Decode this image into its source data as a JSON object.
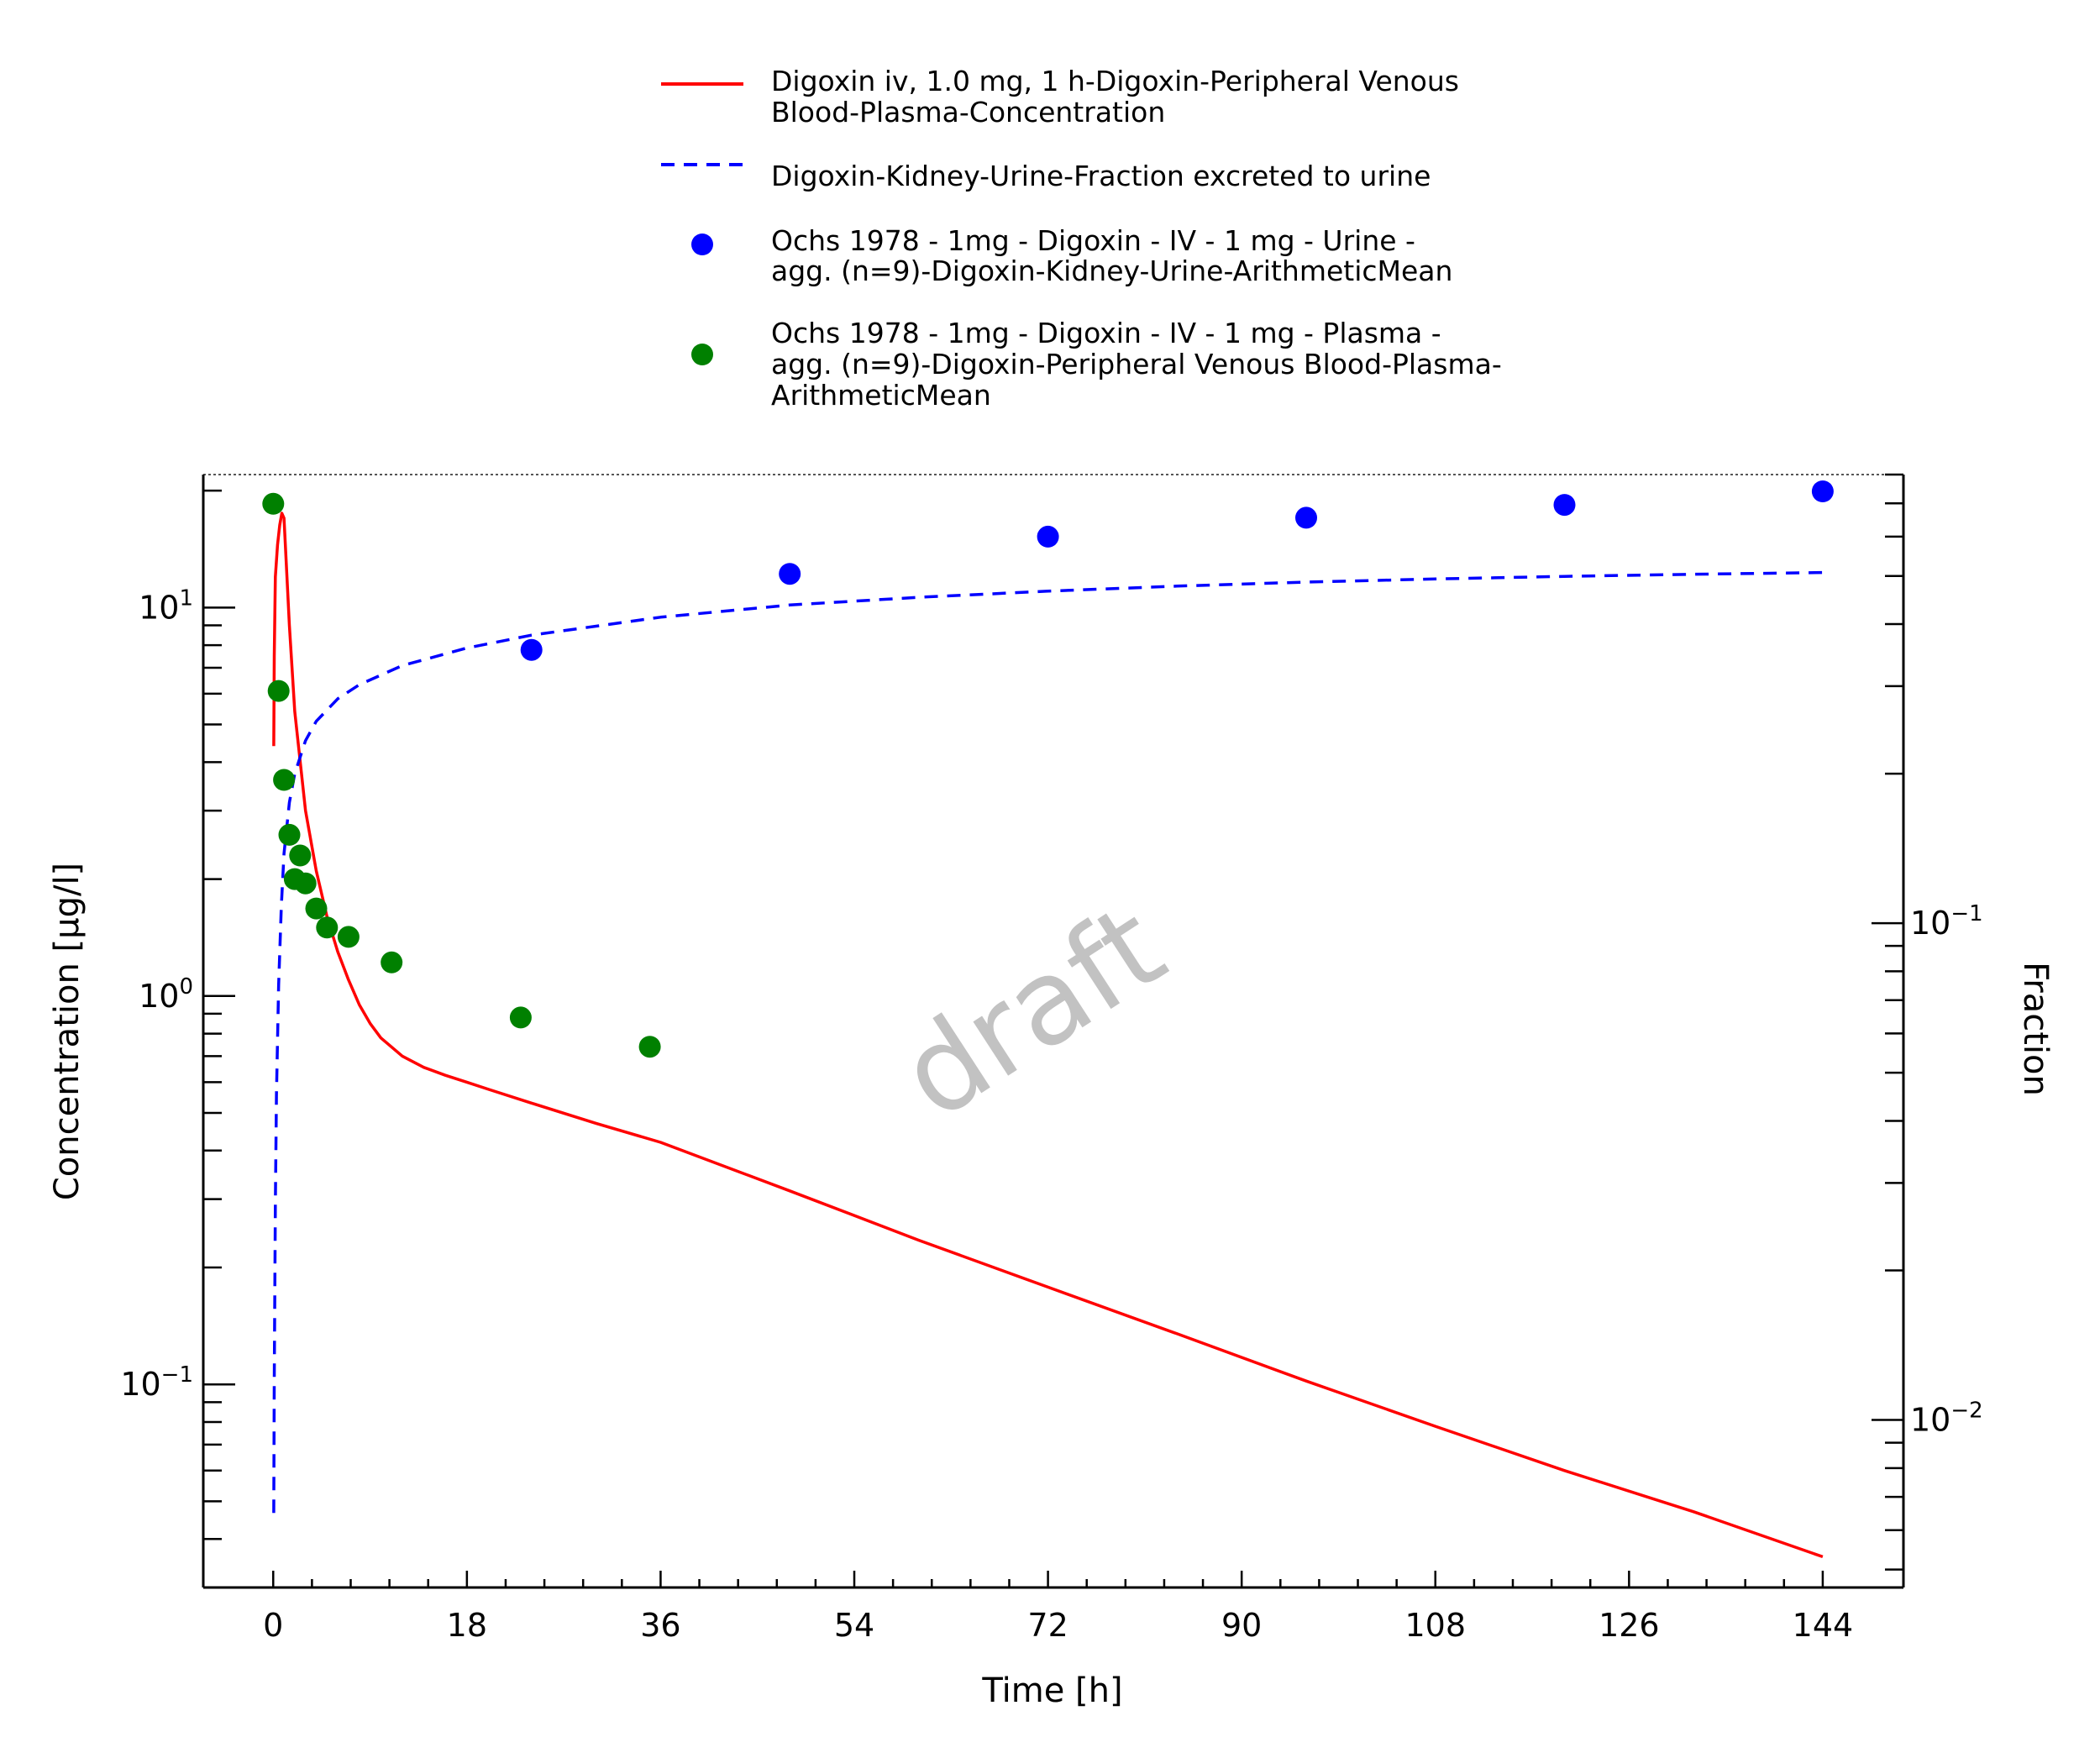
{
  "chart_data": {
    "type": "scatter",
    "xlabel": "Time [h]",
    "ylabel": "Concentration [µg/l]",
    "y2label": "Fraction",
    "watermark": "draft",
    "x_ticks": [
      0,
      18,
      36,
      54,
      72,
      90,
      108,
      126,
      144
    ],
    "xlim": [
      -6.5,
      151.5
    ],
    "ylim": [
      0.03,
      22
    ],
    "y_scale": "log",
    "y_ticks": [
      {
        "value": 10,
        "label": "10",
        "exp": "1"
      },
      {
        "value": 1,
        "label": "10",
        "exp": "0"
      },
      {
        "value": 0.1,
        "label": "10",
        "exp": "−1"
      }
    ],
    "y2lim": [
      0.0046,
      0.8
    ],
    "y2_scale": "log",
    "y2_ticks": [
      {
        "value": 0.1,
        "label": "10",
        "exp": "−1"
      },
      {
        "value": 0.01,
        "label": "10",
        "exp": "−2"
      }
    ],
    "legend_position": "top-center",
    "grid": false,
    "series": [
      {
        "name": "Digoxin iv, 1.0 mg, 1 h-Digoxin-Peripheral Venous Blood-Plasma-Concentration",
        "kind": "line",
        "style": "solid",
        "color": "#ff0000",
        "axis": "left",
        "x": [
          0.05,
          0.1,
          0.2,
          0.4,
          0.6,
          0.8,
          1.0,
          1.5,
          2,
          3,
          4,
          5,
          6,
          7,
          8,
          9,
          10,
          12,
          14,
          16,
          18,
          20,
          24,
          30,
          36,
          48,
          60,
          72,
          84,
          96,
          108,
          120,
          132,
          144
        ],
        "y": [
          4.4,
          7.5,
          12.0,
          14.5,
          16.3,
          17.5,
          17.0,
          9.0,
          5.4,
          3.0,
          2.1,
          1.6,
          1.3,
          1.1,
          0.95,
          0.85,
          0.78,
          0.7,
          0.655,
          0.625,
          0.6,
          0.575,
          0.53,
          0.47,
          0.42,
          0.315,
          0.235,
          0.178,
          0.135,
          0.102,
          0.078,
          0.06,
          0.047,
          0.036
        ]
      },
      {
        "name": "Digoxin-Kidney-Urine-Fraction excreted to urine",
        "kind": "line",
        "style": "dashed",
        "color": "#0000ff",
        "axis": "right",
        "x": [
          0.05,
          0.1,
          0.2,
          0.3,
          0.5,
          0.75,
          1,
          1.5,
          2,
          3,
          4,
          6,
          8,
          12,
          18,
          24,
          36,
          48,
          60,
          72,
          84,
          96,
          108,
          120,
          132,
          144
        ],
        "y": [
          0.0065,
          0.012,
          0.027,
          0.045,
          0.075,
          0.108,
          0.138,
          0.175,
          0.2,
          0.233,
          0.255,
          0.283,
          0.302,
          0.33,
          0.358,
          0.38,
          0.413,
          0.437,
          0.453,
          0.466,
          0.477,
          0.486,
          0.493,
          0.499,
          0.504,
          0.508
        ]
      },
      {
        "name": "Ochs 1978 - 1mg - Digoxin - IV - 1 mg - Urine - agg. (n=9)-Digoxin-Kidney-Urine-ArithmeticMean",
        "kind": "points",
        "color": "#0000ff",
        "axis": "right",
        "x": [
          24,
          48,
          72,
          96,
          120,
          144
        ],
        "y": [
          0.355,
          0.505,
          0.6,
          0.655,
          0.695,
          0.74
        ]
      },
      {
        "name": "Ochs 1978 - 1mg - Digoxin - IV - 1 mg - Plasma - agg. (n=9)-Digoxin-Peripheral Venous Blood-Plasma-ArithmeticMean",
        "kind": "points",
        "color": "#008000",
        "axis": "left",
        "x": [
          0,
          0.5,
          1,
          1.5,
          2,
          2.5,
          3,
          4,
          5,
          7,
          11,
          23,
          35
        ],
        "y": [
          18.5,
          6.1,
          3.6,
          2.6,
          2.0,
          2.3,
          1.95,
          1.68,
          1.5,
          1.42,
          1.22,
          0.88,
          0.74
        ]
      }
    ]
  },
  "legend": {
    "items": [
      {
        "lines": [
          "Digoxin iv, 1.0 mg, 1 h-Digoxin-Peripheral Venous",
          "Blood-Plasma-Concentration"
        ]
      },
      {
        "lines": [
          "Digoxin-Kidney-Urine-Fraction excreted to urine"
        ]
      },
      {
        "lines": [
          "Ochs 1978 - 1mg - Digoxin - IV - 1 mg - Urine -",
          "agg. (n=9)-Digoxin-Kidney-Urine-ArithmeticMean"
        ]
      },
      {
        "lines": [
          "Ochs 1978 - 1mg - Digoxin - IV - 1 mg - Plasma -",
          "agg. (n=9)-Digoxin-Peripheral Venous Blood-Plasma-",
          "ArithmeticMean"
        ]
      }
    ]
  }
}
